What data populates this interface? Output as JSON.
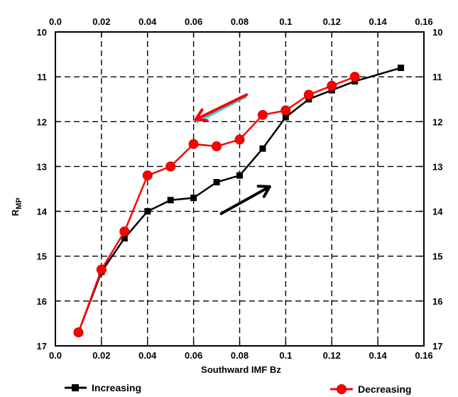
{
  "chart_data": {
    "type": "line",
    "xlabel": "Southward IMF Bz",
    "ylabel_main": "R",
    "ylabel_sub": "MP",
    "xlim": [
      0.0,
      0.16
    ],
    "ylim": [
      10,
      17
    ],
    "y_inverted": true,
    "grid": true,
    "x_ticks": [
      "0.0",
      "0.02",
      "0.04",
      "0.06",
      "0.08",
      "0.1",
      "0.12",
      "0.14",
      "0.16"
    ],
    "y_ticks": [
      "10",
      "11",
      "12",
      "13",
      "14",
      "15",
      "16",
      "17"
    ],
    "legend_position": "bottom",
    "series": [
      {
        "name": "Increasing",
        "color": "#000000",
        "marker": "square",
        "x": [
          0.01,
          0.02,
          0.03,
          0.04,
          0.05,
          0.06,
          0.07,
          0.08,
          0.09,
          0.1,
          0.11,
          0.12,
          0.13,
          0.15
        ],
        "y": [
          16.7,
          15.35,
          14.6,
          14.0,
          13.75,
          13.7,
          13.35,
          13.2,
          12.6,
          11.9,
          11.5,
          11.3,
          11.1,
          10.8
        ]
      },
      {
        "name": "Decreasing",
        "color": "#ff0000",
        "marker": "circle",
        "x": [
          0.01,
          0.02,
          0.03,
          0.04,
          0.05,
          0.06,
          0.07,
          0.08,
          0.09,
          0.1,
          0.11,
          0.12,
          0.13
        ],
        "y": [
          16.7,
          15.3,
          14.45,
          13.2,
          13.0,
          12.5,
          12.55,
          12.4,
          11.85,
          11.75,
          11.4,
          11.2,
          11.0
        ]
      }
    ],
    "annotations": [
      {
        "type": "arrow",
        "color": "#ff0000",
        "highlight": "#33ccdd",
        "from": [
          0.083,
          11.4
        ],
        "to": [
          0.061,
          11.95
        ]
      },
      {
        "type": "arrow",
        "color": "#000000",
        "from": [
          0.072,
          14.05
        ],
        "to": [
          0.093,
          13.45
        ]
      }
    ]
  }
}
